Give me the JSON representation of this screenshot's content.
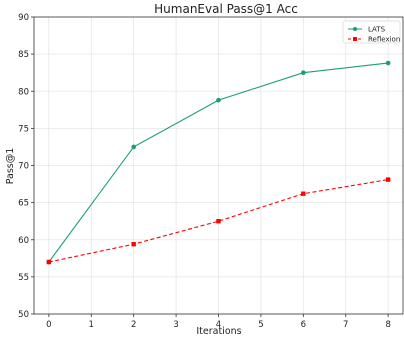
{
  "chart_data": {
    "type": "line",
    "title": "HumanEval Pass@1 Acc",
    "xlabel": "Iterations",
    "ylabel": "Pass@1",
    "xlim": [
      -0.35,
      8.35
    ],
    "ylim": [
      50,
      90
    ],
    "xticks": [
      0,
      1,
      2,
      3,
      4,
      5,
      6,
      7,
      8
    ],
    "yticks": [
      50,
      55,
      60,
      65,
      70,
      75,
      80,
      85,
      90
    ],
    "grid": true,
    "legend_position": "top-right",
    "series": [
      {
        "name": "LATS",
        "color": "#1a9e77",
        "line_style": "solid",
        "marker": "circle",
        "x": [
          0,
          2,
          4,
          6,
          8
        ],
        "y": [
          57.0,
          72.5,
          78.8,
          82.5,
          83.8
        ]
      },
      {
        "name": "Reflexion",
        "color": "#ff0000",
        "line_style": "dashed",
        "marker": "square",
        "x": [
          0,
          2,
          4,
          6,
          8
        ],
        "y": [
          57.0,
          59.4,
          62.5,
          66.2,
          68.1
        ]
      }
    ]
  }
}
